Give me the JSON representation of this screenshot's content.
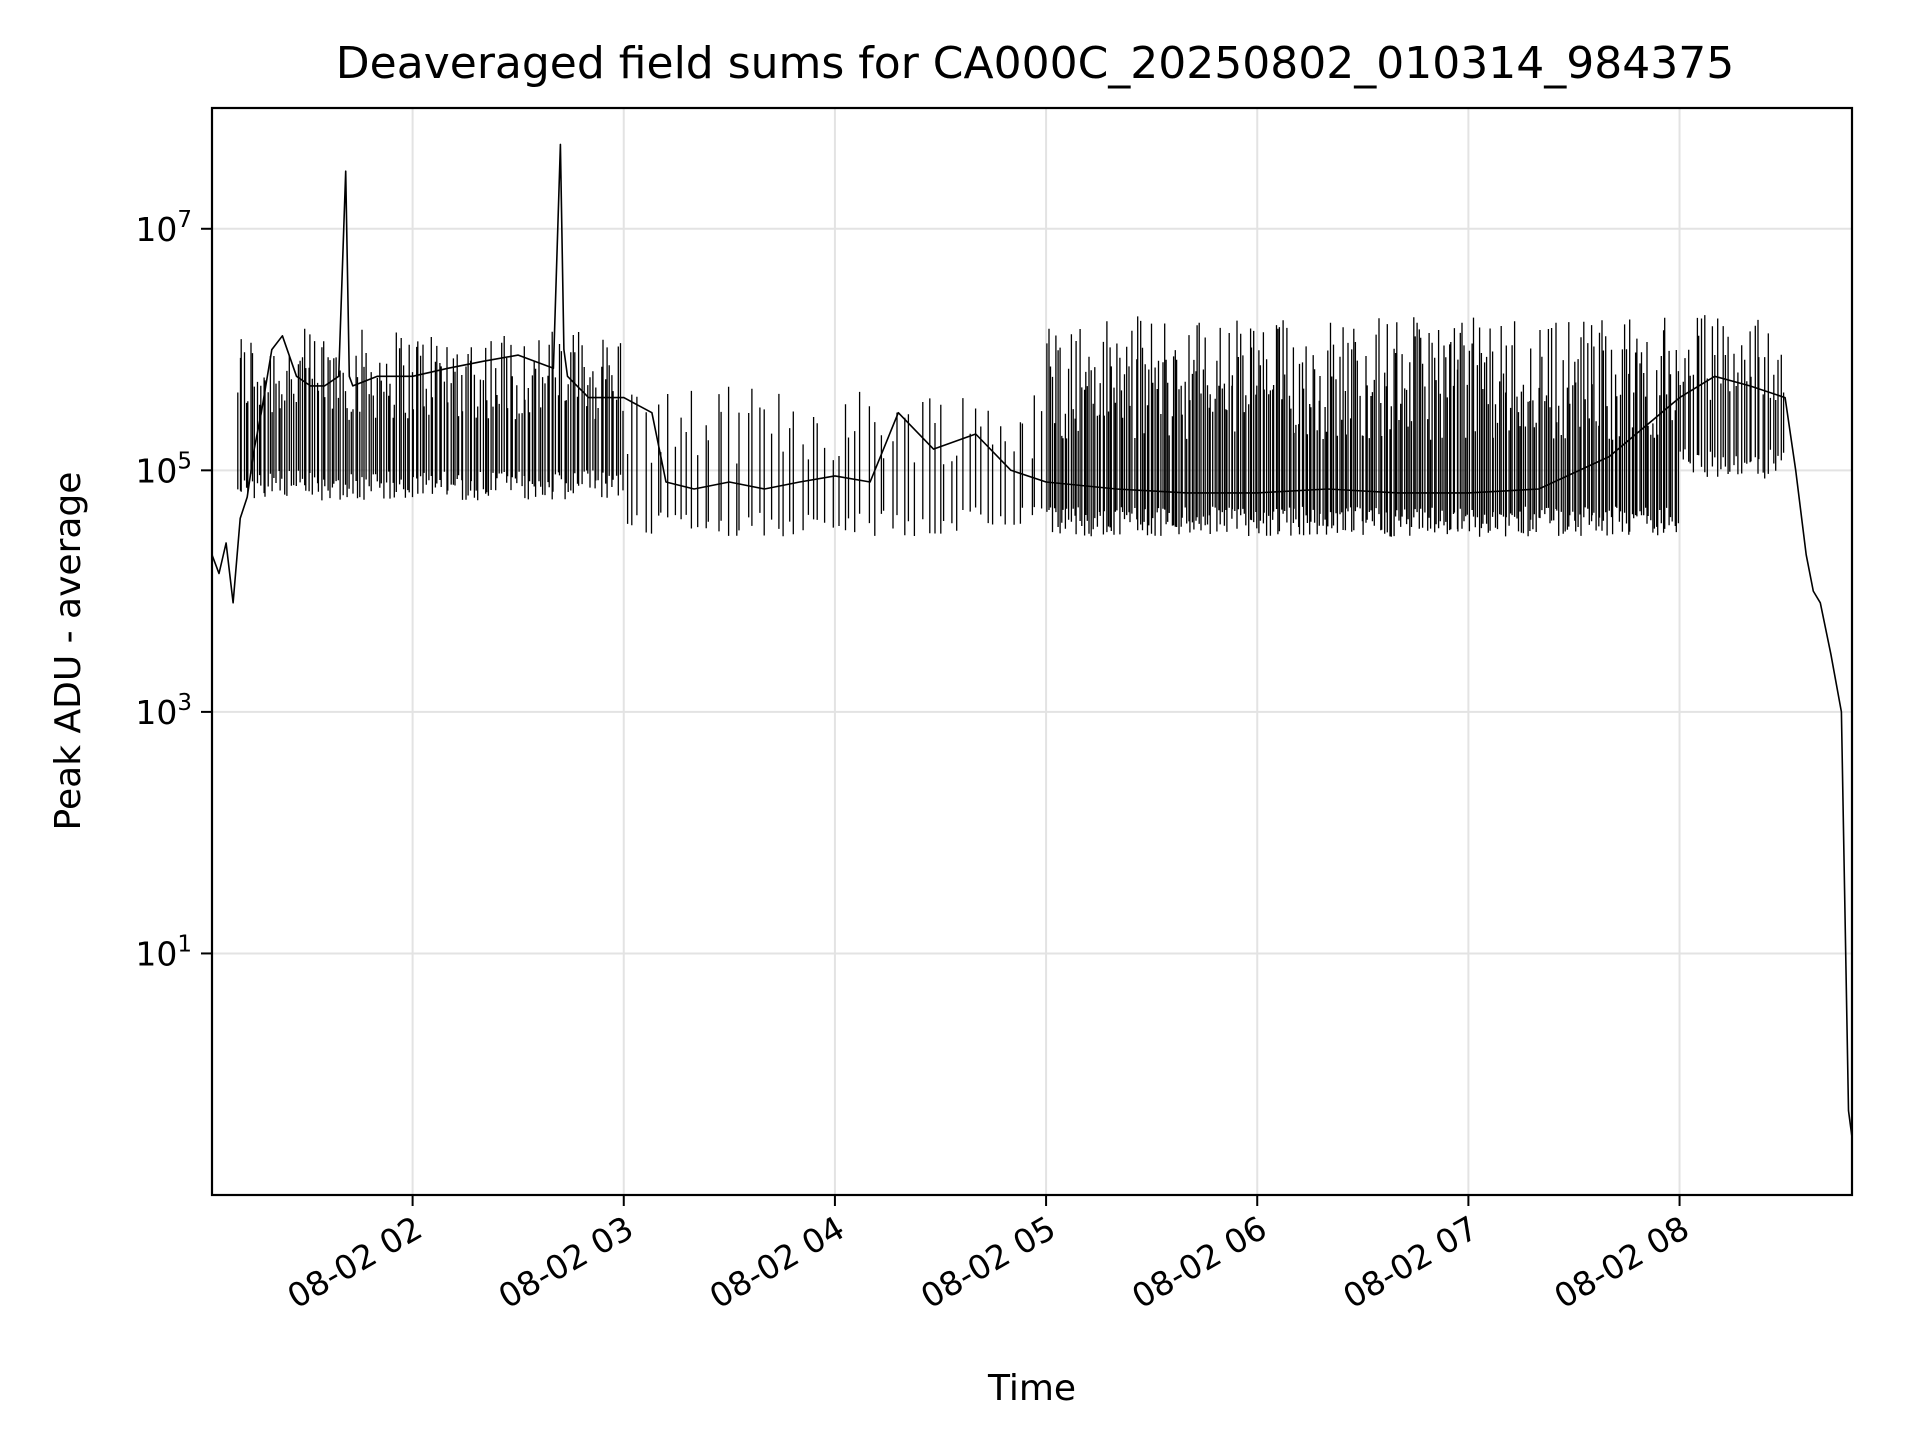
{
  "chart_data": {
    "type": "line",
    "title": "Deaveraged field sums for CA000C_20250802_010314_984375",
    "xlabel": "Time",
    "ylabel": "Peak ADU - average",
    "yscale": "log",
    "grid": true,
    "x_range": [
      "2025-08-02 01:03",
      "2025-08-02 08:49"
    ],
    "ylim": [
      0.1,
      100000000.0
    ],
    "x_ticks": [
      {
        "value": "2025-08-02 02:00",
        "label": "08-02 02"
      },
      {
        "value": "2025-08-02 03:00",
        "label": "08-02 03"
      },
      {
        "value": "2025-08-02 04:00",
        "label": "08-02 04"
      },
      {
        "value": "2025-08-02 05:00",
        "label": "08-02 05"
      },
      {
        "value": "2025-08-02 06:00",
        "label": "08-02 06"
      },
      {
        "value": "2025-08-02 07:00",
        "label": "08-02 07"
      },
      {
        "value": "2025-08-02 08:00",
        "label": "08-02 08"
      }
    ],
    "y_ticks": [
      {
        "value": 10,
        "base": "10",
        "exp": "1"
      },
      {
        "value": 1000,
        "base": "10",
        "exp": "3"
      },
      {
        "value": 100000,
        "base": "10",
        "exp": "5"
      },
      {
        "value": 10000000,
        "base": "10",
        "exp": "7"
      }
    ],
    "series": [
      {
        "color": "#000000",
        "x": [
          "2025-08-02 01:03",
          "2025-08-02 01:05",
          "2025-08-02 01:07",
          "2025-08-02 01:09",
          "2025-08-02 01:11",
          "2025-08-02 01:13",
          "2025-08-02 01:15",
          "2025-08-02 01:17",
          "2025-08-02 01:20",
          "2025-08-02 01:23",
          "2025-08-02 01:27",
          "2025-08-02 01:31",
          "2025-08-02 01:35",
          "2025-08-02 01:39",
          "2025-08-02 01:41",
          "2025-08-02 01:42",
          "2025-08-02 01:43",
          "2025-08-02 01:50",
          "2025-08-02 02:00",
          "2025-08-02 02:10",
          "2025-08-02 02:20",
          "2025-08-02 02:30",
          "2025-08-02 02:40",
          "2025-08-02 02:42",
          "2025-08-02 02:43",
          "2025-08-02 02:44",
          "2025-08-02 02:50",
          "2025-08-02 03:00",
          "2025-08-02 03:08",
          "2025-08-02 03:12",
          "2025-08-02 03:20",
          "2025-08-02 03:30",
          "2025-08-02 03:40",
          "2025-08-02 03:50",
          "2025-08-02 04:00",
          "2025-08-02 04:10",
          "2025-08-02 04:18",
          "2025-08-02 04:28",
          "2025-08-02 04:40",
          "2025-08-02 04:50",
          "2025-08-02 05:00",
          "2025-08-02 05:20",
          "2025-08-02 05:40",
          "2025-08-02 06:00",
          "2025-08-02 06:20",
          "2025-08-02 06:40",
          "2025-08-02 07:00",
          "2025-08-02 07:20",
          "2025-08-02 07:40",
          "2025-08-02 08:00",
          "2025-08-02 08:10",
          "2025-08-02 08:20",
          "2025-08-02 08:30",
          "2025-08-02 08:33",
          "2025-08-02 08:36",
          "2025-08-02 08:38",
          "2025-08-02 08:40",
          "2025-08-02 08:43",
          "2025-08-02 08:46",
          "2025-08-02 08:48",
          "2025-08-02 08:49"
        ],
        "y": [
          20000,
          14000,
          25000,
          8000,
          40000,
          60000,
          150000,
          300000,
          1000000,
          1300000,
          600000,
          500000,
          500000,
          600000,
          30000000,
          600000,
          500000,
          600000,
          600000,
          700000,
          800000,
          900000,
          700000,
          50000000,
          1000000,
          600000,
          400000,
          400000,
          300000,
          80000,
          70000,
          80000,
          70000,
          80000,
          90000,
          80000,
          300000,
          150000,
          200000,
          100000,
          80000,
          70000,
          65000,
          65000,
          70000,
          65000,
          65000,
          70000,
          130000,
          400000,
          600000,
          500000,
          400000,
          100000,
          20000,
          10000,
          8000,
          3000,
          1000,
          0.5,
          0.3
        ],
        "spikes": [
          {
            "x": [
              "2025-08-02 01:10",
              "2025-08-02 03:00"
            ],
            "count": 180,
            "low": 100000,
            "high": 1500000
          },
          {
            "x": [
              "2025-08-02 03:00",
              "2025-08-02 05:00"
            ],
            "count": 70,
            "low": 50000,
            "high": 500000
          },
          {
            "x": [
              "2025-08-02 05:00",
              "2025-08-02 08:00"
            ],
            "count": 340,
            "low": 50000,
            "high": 1900000
          },
          {
            "x": [
              "2025-08-02 08:00",
              "2025-08-02 08:30"
            ],
            "count": 40,
            "low": 150000,
            "high": 2000000
          }
        ]
      }
    ]
  }
}
